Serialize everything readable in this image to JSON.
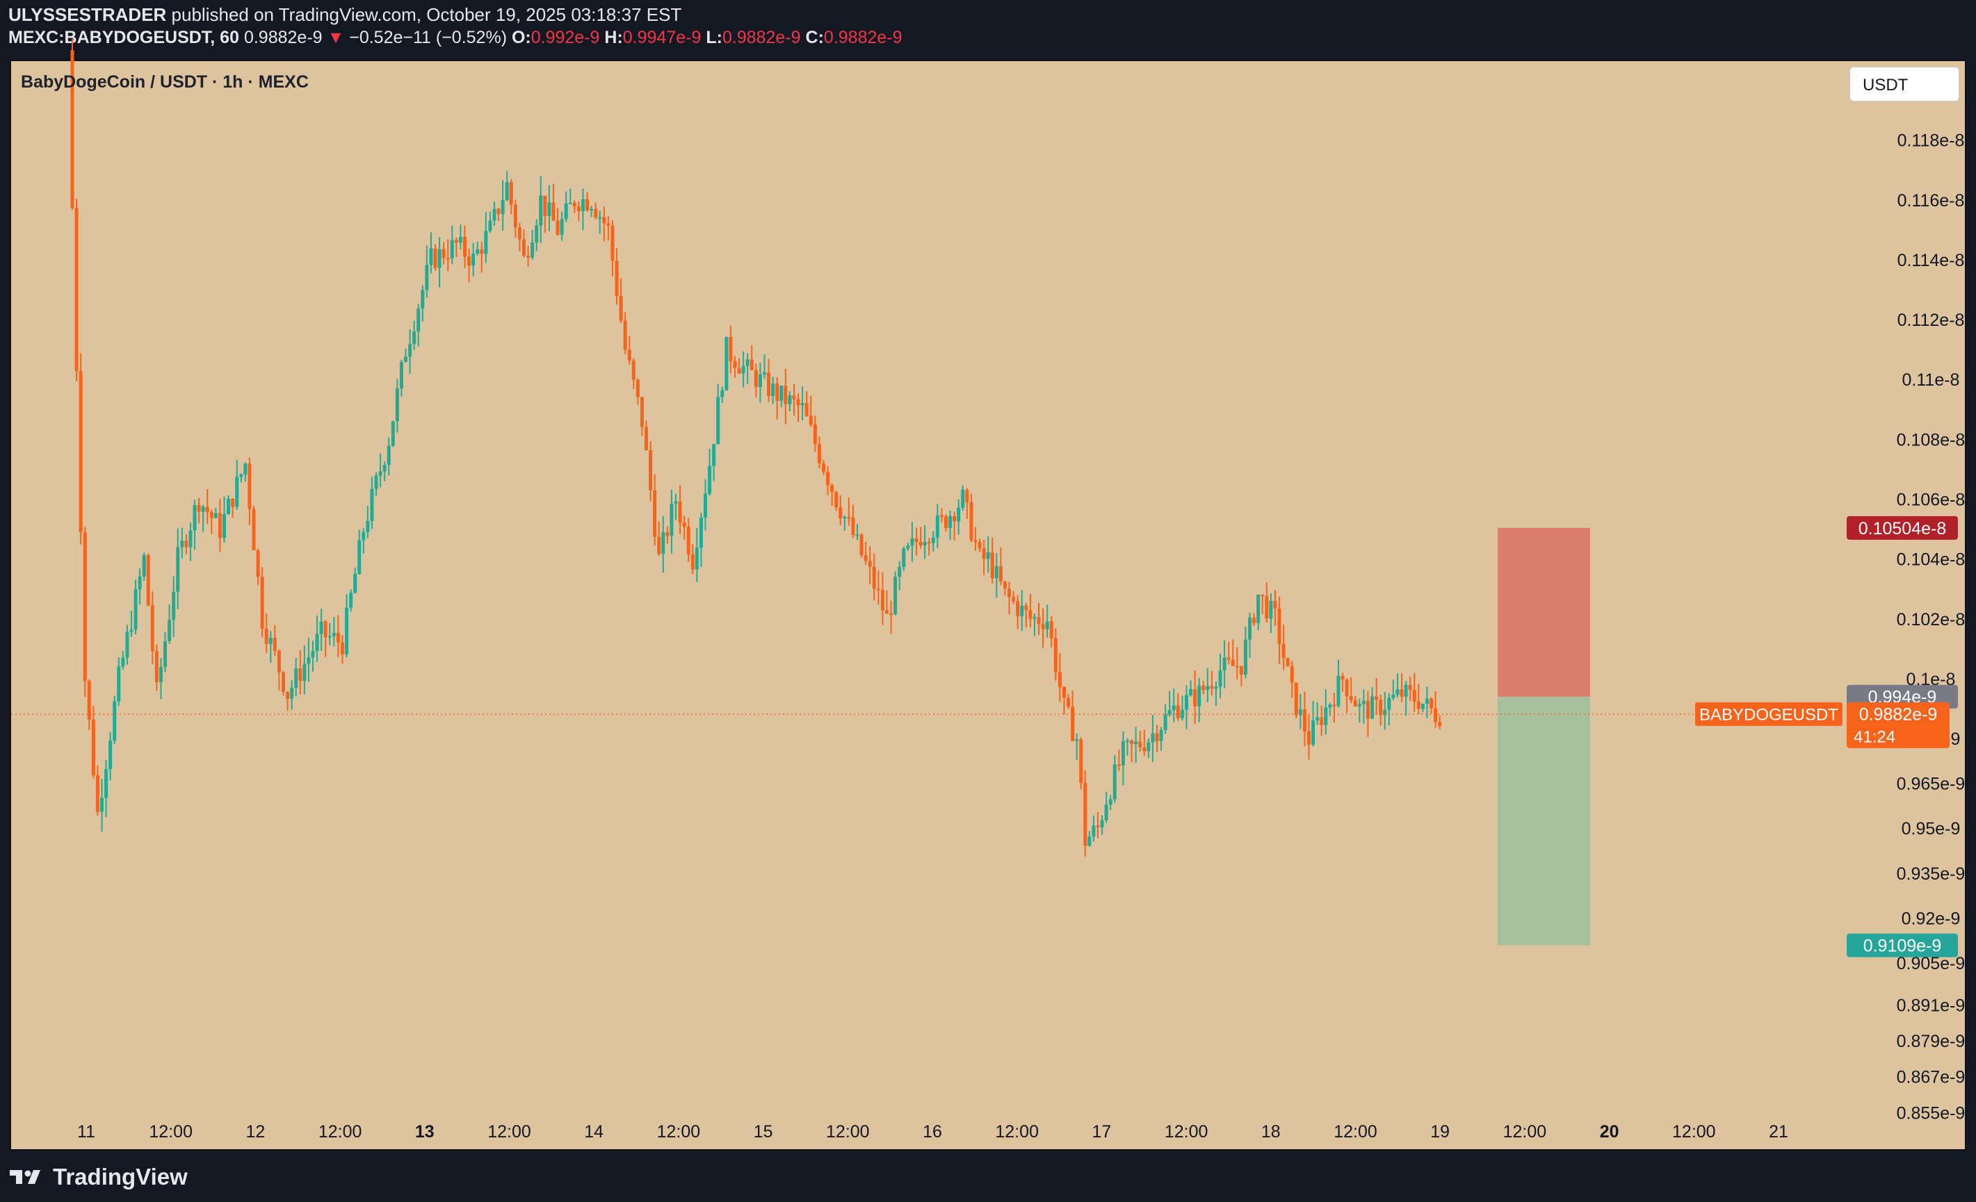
{
  "header": {
    "author": "ULYSSESTRADER",
    "published_text": "published on TradingView.com, October 19, 2025 03:18:37 EST",
    "symbol_line": "MEXC:BABYDOGEUSDT, 60",
    "last": "0.9882e-9",
    "change_arrow": "▼",
    "change": "−0.52e−11 (−0.52%)",
    "o_label": "O:",
    "o_value": "0.992e-9",
    "h_label": "H:",
    "h_value": "0.9947e-9",
    "l_label": "L:",
    "l_value": "0.9882e-9",
    "c_label": "C:",
    "c_value": "0.9882e-9"
  },
  "chart_title": "BabyDogeCoin / USDT · 1h · MEXC",
  "currency_button": "USDT",
  "footer_logo": "TradingView",
  "colors": {
    "up": "#22ab94",
    "down": "#f7631b",
    "background": "#dec49e",
    "stop_zone": "#d87a6c",
    "target_zone": "#a1c09b"
  },
  "chart_data": {
    "type": "candlestick",
    "symbol": "BABYDOGEUSDT",
    "interval": "1h",
    "ylim": [
      8.53e-10,
      1.192e-09
    ],
    "y_ticks": [
      "0.855e-9",
      "0.867e-9",
      "0.879e-9",
      "0.891e-9",
      "0.905e-9",
      "0.92e-9",
      "0.935e-9",
      "0.95e-9",
      "0.965e-9",
      "0.98e-9",
      "0.1e-8",
      "0.102e-8",
      "0.104e-8",
      "0.106e-8",
      "0.108e-8",
      "0.11e-8",
      "0.112e-8",
      "0.114e-8",
      "0.116e-8",
      "0.118e-8"
    ],
    "x_ticks": [
      {
        "label": "11",
        "bold": false
      },
      {
        "label": "12:00",
        "bold": false
      },
      {
        "label": "12",
        "bold": false
      },
      {
        "label": "12:00",
        "bold": false
      },
      {
        "label": "13",
        "bold": true
      },
      {
        "label": "12:00",
        "bold": false
      },
      {
        "label": "14",
        "bold": false
      },
      {
        "label": "12:00",
        "bold": false
      },
      {
        "label": "15",
        "bold": false
      },
      {
        "label": "12:00",
        "bold": false
      },
      {
        "label": "16",
        "bold": false
      },
      {
        "label": "12:00",
        "bold": false
      },
      {
        "label": "17",
        "bold": false
      },
      {
        "label": "12:00",
        "bold": false
      },
      {
        "label": "18",
        "bold": false
      },
      {
        "label": "12:00",
        "bold": false
      },
      {
        "label": "19",
        "bold": false
      },
      {
        "label": "12:00",
        "bold": false
      },
      {
        "label": "20",
        "bold": true
      },
      {
        "label": "12:00",
        "bold": false
      },
      {
        "label": "21",
        "bold": false
      }
    ],
    "path": [
      [
        0,
        1.21e-09
      ],
      [
        4,
        1e-09
      ],
      [
        7,
        9.55e-10
      ],
      [
        12,
        1e-09
      ],
      [
        18,
        1.04e-09
      ],
      [
        21,
        9.95e-10
      ],
      [
        26,
        1.04e-09
      ],
      [
        31,
        1.06e-09
      ],
      [
        36,
        1.05e-09
      ],
      [
        42,
        1.072e-09
      ],
      [
        46,
        1.02e-09
      ],
      [
        52,
        9.95e-10
      ],
      [
        60,
        1.015e-09
      ],
      [
        65,
        1.012e-09
      ],
      [
        70,
        1.05e-09
      ],
      [
        76,
        1.08e-09
      ],
      [
        80,
        1.11e-09
      ],
      [
        86,
        1.14e-09
      ],
      [
        92,
        1.145e-09
      ],
      [
        96,
        1.14e-09
      ],
      [
        100,
        1.15e-09
      ],
      [
        104,
        1.165e-09
      ],
      [
        108,
        1.14e-09
      ],
      [
        112,
        1.16e-09
      ],
      [
        116,
        1.15e-09
      ],
      [
        120,
        1.16e-09
      ],
      [
        124,
        1.16e-09
      ],
      [
        128,
        1.15e-09
      ],
      [
        132,
        1.11e-09
      ],
      [
        136,
        1.086e-09
      ],
      [
        140,
        1.04e-09
      ],
      [
        144,
        1.06e-09
      ],
      [
        148,
        1.04e-09
      ],
      [
        152,
        1.072e-09
      ],
      [
        156,
        1.11e-09
      ],
      [
        160,
        1.104e-09
      ],
      [
        168,
        1.095e-09
      ],
      [
        174,
        1.09e-09
      ],
      [
        178,
        1.075e-09
      ],
      [
        182,
        1.06e-09
      ],
      [
        186,
        1.048e-09
      ],
      [
        190,
        1.035e-09
      ],
      [
        194,
        1.02e-09
      ],
      [
        198,
        1.04e-09
      ],
      [
        202,
        1.048e-09
      ],
      [
        207,
        1.052e-09
      ],
      [
        212,
        1.06e-09
      ],
      [
        216,
        1.04e-09
      ],
      [
        218,
        1.04e-09
      ],
      [
        222,
        1.028e-09
      ],
      [
        228,
        1.02e-09
      ],
      [
        232,
        1.02e-09
      ],
      [
        236,
        9.9e-10
      ],
      [
        239,
        9.8e-10
      ],
      [
        241,
        9.46e-10
      ],
      [
        244,
        9.5e-10
      ],
      [
        246,
        9.6e-10
      ],
      [
        250,
        9.75e-10
      ],
      [
        256,
        9.8e-10
      ],
      [
        262,
        9.9e-10
      ],
      [
        268,
        9.95e-10
      ],
      [
        273,
        1.003e-09
      ],
      [
        278,
        1.005e-09
      ],
      [
        282,
        1.028e-09
      ],
      [
        286,
        1.02e-09
      ],
      [
        290,
        9.95e-10
      ],
      [
        294,
        9.8e-10
      ],
      [
        298,
        9.9e-10
      ],
      [
        302,
        1e-09
      ],
      [
        306,
        9.9e-10
      ],
      [
        310,
        9.9e-10
      ],
      [
        316,
        9.95e-10
      ],
      [
        320,
        9.93e-10
      ],
      [
        324,
        9.882e-10
      ]
    ],
    "series": [
      {
        "name": "BABYDOGEUSDT",
        "last": "0.9882e-9",
        "countdown": "41:24"
      }
    ],
    "price_labels": {
      "stop": "0.10504e-8",
      "entry": "0.994e-9",
      "target": "0.9109e-9"
    },
    "position": {
      "type": "short",
      "stop": 1.0504e-09,
      "entry": 9.94e-10,
      "target": 9.109e-10
    }
  }
}
